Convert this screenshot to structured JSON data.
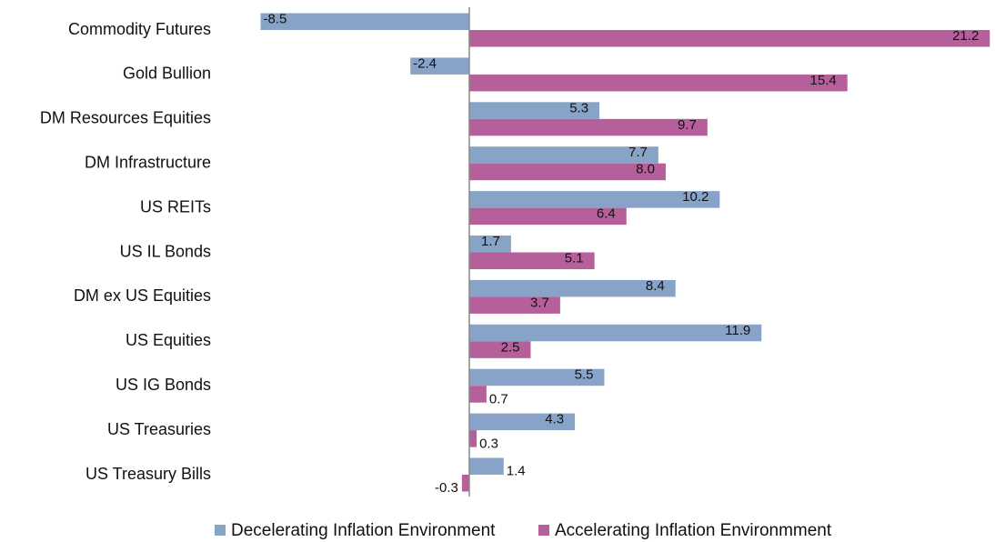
{
  "chart_data": {
    "type": "hbar",
    "categories": [
      "Commodity Futures",
      "Gold Bullion",
      "DM Resources Equities",
      "DM Infrastructure",
      "US REITs",
      "US IL Bonds",
      "DM ex US Equities",
      "US Equities",
      "US IG Bonds",
      "US Treasuries",
      "US Treasury Bills"
    ],
    "series": [
      {
        "name": "Decelerating Inflation Environment",
        "color": "#87a3c8",
        "values": [
          -8.5,
          -2.4,
          5.3,
          7.7,
          10.2,
          1.7,
          8.4,
          11.9,
          5.5,
          4.3,
          1.4
        ],
        "value_labels": [
          "-8.5",
          "-2.4",
          "5.3",
          "7.7",
          "10.2",
          "1.7",
          "8.4",
          "11.9",
          "5.5",
          "4.3",
          "1.4"
        ]
      },
      {
        "name": "Accelerating Inflation Environmment",
        "color": "#b6609b",
        "values": [
          21.2,
          15.4,
          9.7,
          8.0,
          6.4,
          5.1,
          3.7,
          2.5,
          0.7,
          0.3,
          -0.3
        ],
        "value_labels": [
          "21.2",
          "15.4",
          "9.7",
          "8.0",
          "6.4",
          "5.1",
          "3.7",
          "2.5",
          "0.7",
          "0.3",
          "-0.3"
        ]
      }
    ],
    "xlim": [
      -9,
      21.3
    ],
    "legend": "bottom"
  }
}
